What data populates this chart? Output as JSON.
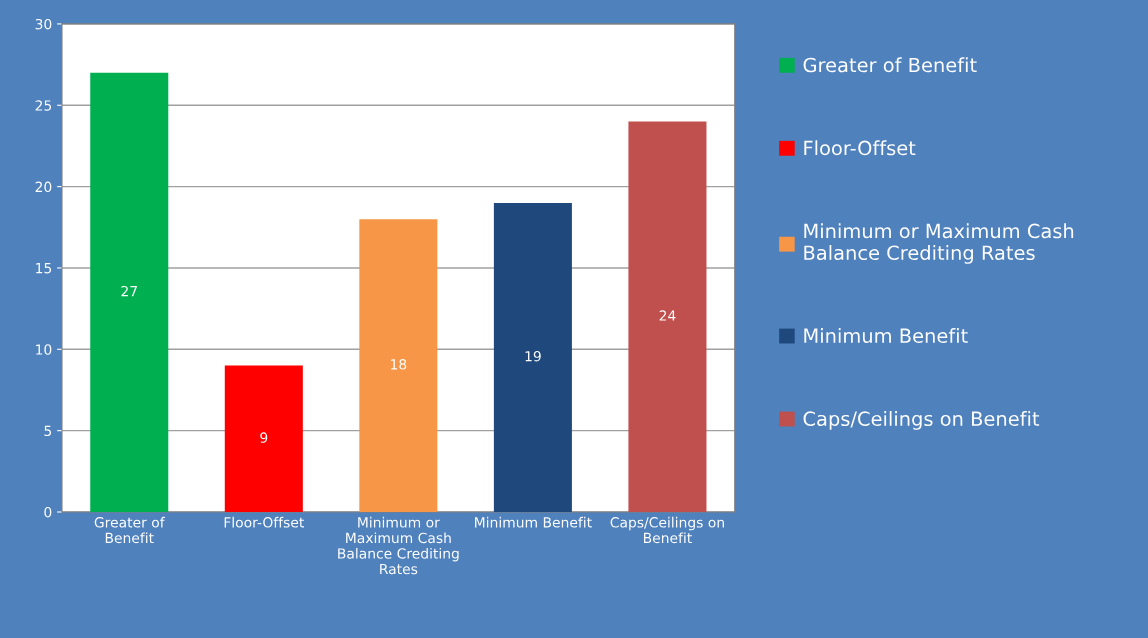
{
  "chart_data": {
    "type": "bar",
    "categories": [
      "Greater of Benefit",
      "Floor-Offset",
      "Minimum or Maximum Cash Balance Crediting Rates",
      "Minimum Benefit",
      "Caps/Ceilings on Benefit"
    ],
    "series": [
      {
        "name": "Greater of Benefit",
        "color": "#00b050",
        "values": [
          27,
          null,
          null,
          null,
          null
        ]
      },
      {
        "name": "Floor-Offset",
        "color": "#ff0000",
        "values": [
          null,
          9,
          null,
          null,
          null
        ]
      },
      {
        "name": "Minimum or Maximum Cash Balance Crediting Rates",
        "color": "#f79646",
        "values": [
          null,
          null,
          18,
          null,
          null
        ]
      },
      {
        "name": "Minimum Benefit",
        "color": "#1f497d",
        "values": [
          null,
          null,
          null,
          19,
          null
        ]
      },
      {
        "name": "Caps/Ceilings on Benefit",
        "color": "#c0504d",
        "values": [
          null,
          null,
          null,
          null,
          24
        ]
      }
    ],
    "ylim": [
      0,
      30
    ],
    "yticks": [
      0,
      5,
      10,
      15,
      20,
      25,
      30
    ],
    "grid": "y",
    "legend": "right",
    "data_labels": true
  }
}
